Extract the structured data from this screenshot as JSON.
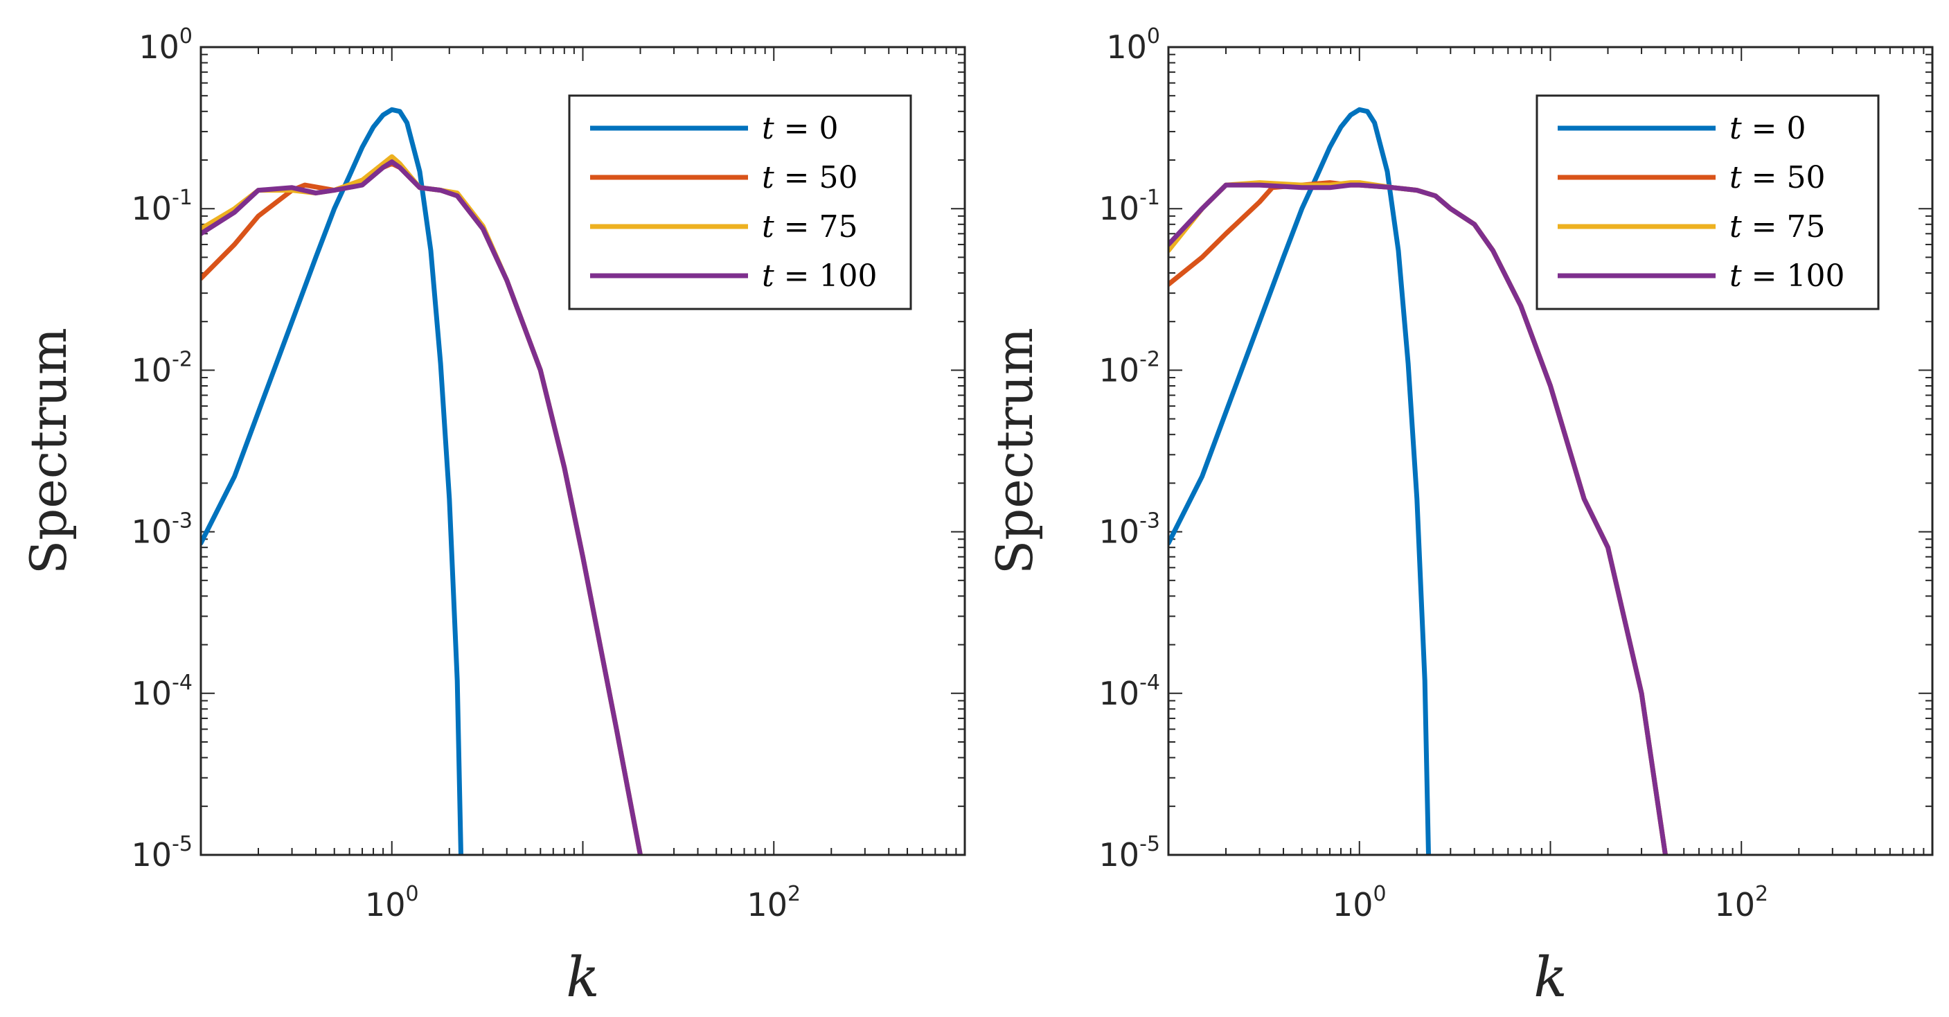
{
  "chart_data": [
    {
      "type": "line",
      "panel": "left",
      "xscale": "log",
      "yscale": "log",
      "xlim": [
        0.1,
        1000
      ],
      "ylim": [
        1e-05,
        1
      ],
      "xlabel": "k",
      "ylabel": "Spectrum",
      "xticks": [
        {
          "base": "10",
          "exp": "0",
          "value": 1
        },
        {
          "base": "10",
          "exp": "2",
          "value": 100
        }
      ],
      "yticks": [
        {
          "base": "10",
          "exp": "0",
          "value": 1
        },
        {
          "base": "10",
          "exp": "-1",
          "value": 0.1
        },
        {
          "base": "10",
          "exp": "-2",
          "value": 0.01
        },
        {
          "base": "10",
          "exp": "-3",
          "value": 0.001
        },
        {
          "base": "10",
          "exp": "-4",
          "value": 0.0001
        },
        {
          "base": "10",
          "exp": "-5",
          "value": 1e-05
        }
      ],
      "legend": {
        "position": "top-right"
      },
      "series": [
        {
          "name": "t = 0",
          "var": "t",
          "eq": " = 0",
          "color": "#0072BD",
          "points": [
            [
              0.1,
              0.00085
            ],
            [
              0.15,
              0.0022
            ],
            [
              0.2,
              0.0055
            ],
            [
              0.3,
              0.02
            ],
            [
              0.4,
              0.05
            ],
            [
              0.5,
              0.1
            ],
            [
              0.6,
              0.16
            ],
            [
              0.7,
              0.24
            ],
            [
              0.8,
              0.32
            ],
            [
              0.9,
              0.38
            ],
            [
              1.0,
              0.41
            ],
            [
              1.1,
              0.4
            ],
            [
              1.2,
              0.34
            ],
            [
              1.4,
              0.17
            ],
            [
              1.6,
              0.055
            ],
            [
              1.8,
              0.011
            ],
            [
              2.0,
              0.0016
            ],
            [
              2.2,
              0.00012
            ],
            [
              2.3,
              1e-05
            ]
          ]
        },
        {
          "name": "t = 50",
          "var": "t",
          "eq": " = 50",
          "color": "#D95319",
          "points": [
            [
              0.1,
              0.037
            ],
            [
              0.15,
              0.06
            ],
            [
              0.2,
              0.09
            ],
            [
              0.3,
              0.13
            ],
            [
              0.35,
              0.14
            ],
            [
              0.5,
              0.13
            ],
            [
              0.7,
              0.15
            ],
            [
              0.9,
              0.18
            ],
            [
              1.0,
              0.19
            ],
            [
              1.1,
              0.18
            ],
            [
              1.4,
              0.135
            ],
            [
              1.8,
              0.13
            ],
            [
              2.2,
              0.12
            ],
            [
              3,
              0.075
            ],
            [
              4,
              0.036
            ],
            [
              6,
              0.01
            ],
            [
              8,
              0.0025
            ],
            [
              10,
              0.0007
            ],
            [
              15,
              6e-05
            ],
            [
              20,
              1e-05
            ]
          ]
        },
        {
          "name": "t = 75",
          "var": "t",
          "eq": " = 75",
          "color": "#EDB120",
          "points": [
            [
              0.1,
              0.075
            ],
            [
              0.15,
              0.1
            ],
            [
              0.2,
              0.13
            ],
            [
              0.3,
              0.13
            ],
            [
              0.4,
              0.125
            ],
            [
              0.5,
              0.13
            ],
            [
              0.7,
              0.15
            ],
            [
              0.9,
              0.19
            ],
            [
              1.0,
              0.21
            ],
            [
              1.1,
              0.19
            ],
            [
              1.4,
              0.135
            ],
            [
              1.8,
              0.13
            ],
            [
              2.2,
              0.125
            ],
            [
              3,
              0.078
            ],
            [
              4,
              0.036
            ],
            [
              6,
              0.01
            ],
            [
              8,
              0.0025
            ],
            [
              10,
              0.0007
            ],
            [
              15,
              6e-05
            ],
            [
              20,
              1e-05
            ]
          ]
        },
        {
          "name": "t = 100",
          "var": "t",
          "eq": " = 100",
          "color": "#7E2F8E",
          "points": [
            [
              0.1,
              0.07
            ],
            [
              0.15,
              0.095
            ],
            [
              0.2,
              0.13
            ],
            [
              0.3,
              0.135
            ],
            [
              0.4,
              0.125
            ],
            [
              0.5,
              0.13
            ],
            [
              0.7,
              0.14
            ],
            [
              0.9,
              0.18
            ],
            [
              1.0,
              0.195
            ],
            [
              1.1,
              0.18
            ],
            [
              1.4,
              0.135
            ],
            [
              1.8,
              0.13
            ],
            [
              2.2,
              0.12
            ],
            [
              3,
              0.075
            ],
            [
              4,
              0.036
            ],
            [
              6,
              0.01
            ],
            [
              8,
              0.0025
            ],
            [
              10,
              0.0007
            ],
            [
              15,
              6e-05
            ],
            [
              20,
              1e-05
            ]
          ]
        }
      ]
    },
    {
      "type": "line",
      "panel": "right",
      "xscale": "log",
      "yscale": "log",
      "xlim": [
        0.1,
        1000
      ],
      "ylim": [
        1e-05,
        1
      ],
      "xlabel": "k",
      "ylabel": "Spectrum",
      "xticks": [
        {
          "base": "10",
          "exp": "0",
          "value": 1
        },
        {
          "base": "10",
          "exp": "2",
          "value": 100
        }
      ],
      "yticks": [
        {
          "base": "10",
          "exp": "0",
          "value": 1
        },
        {
          "base": "10",
          "exp": "-1",
          "value": 0.1
        },
        {
          "base": "10",
          "exp": "-2",
          "value": 0.01
        },
        {
          "base": "10",
          "exp": "-3",
          "value": 0.001
        },
        {
          "base": "10",
          "exp": "-4",
          "value": 0.0001
        },
        {
          "base": "10",
          "exp": "-5",
          "value": 1e-05
        }
      ],
      "legend": {
        "position": "top-right"
      },
      "series": [
        {
          "name": "t = 0",
          "var": "t",
          "eq": " = 0",
          "color": "#0072BD",
          "points": [
            [
              0.1,
              0.00085
            ],
            [
              0.15,
              0.0022
            ],
            [
              0.2,
              0.0055
            ],
            [
              0.3,
              0.02
            ],
            [
              0.4,
              0.05
            ],
            [
              0.5,
              0.1
            ],
            [
              0.6,
              0.16
            ],
            [
              0.7,
              0.24
            ],
            [
              0.8,
              0.32
            ],
            [
              0.9,
              0.38
            ],
            [
              1.0,
              0.41
            ],
            [
              1.1,
              0.4
            ],
            [
              1.2,
              0.34
            ],
            [
              1.4,
              0.17
            ],
            [
              1.6,
              0.055
            ],
            [
              1.8,
              0.011
            ],
            [
              2.0,
              0.0016
            ],
            [
              2.2,
              0.00012
            ],
            [
              2.3,
              1e-05
            ]
          ]
        },
        {
          "name": "t = 50",
          "var": "t",
          "eq": " = 50",
          "color": "#D95319",
          "points": [
            [
              0.1,
              0.034
            ],
            [
              0.15,
              0.05
            ],
            [
              0.2,
              0.07
            ],
            [
              0.3,
              0.11
            ],
            [
              0.35,
              0.135
            ],
            [
              0.5,
              0.14
            ],
            [
              0.7,
              0.145
            ],
            [
              0.9,
              0.14
            ],
            [
              1.0,
              0.14
            ],
            [
              1.5,
              0.135
            ],
            [
              2,
              0.13
            ],
            [
              2.5,
              0.12
            ],
            [
              3,
              0.1
            ],
            [
              4,
              0.08
            ],
            [
              5,
              0.055
            ],
            [
              7,
              0.025
            ],
            [
              10,
              0.008
            ],
            [
              15,
              0.0016
            ],
            [
              20,
              0.0008
            ],
            [
              30,
              0.0001
            ],
            [
              40,
              1e-05
            ]
          ]
        },
        {
          "name": "t = 75",
          "var": "t",
          "eq": " = 75",
          "color": "#EDB120",
          "points": [
            [
              0.1,
              0.055
            ],
            [
              0.15,
              0.1
            ],
            [
              0.2,
              0.14
            ],
            [
              0.3,
              0.145
            ],
            [
              0.5,
              0.14
            ],
            [
              0.7,
              0.14
            ],
            [
              0.9,
              0.145
            ],
            [
              1.0,
              0.145
            ],
            [
              1.5,
              0.135
            ],
            [
              2,
              0.13
            ],
            [
              2.5,
              0.12
            ],
            [
              3,
              0.1
            ],
            [
              4,
              0.08
            ],
            [
              5,
              0.055
            ],
            [
              7,
              0.025
            ],
            [
              10,
              0.008
            ],
            [
              15,
              0.0016
            ],
            [
              20,
              0.0008
            ],
            [
              30,
              0.0001
            ],
            [
              40,
              1e-05
            ]
          ]
        },
        {
          "name": "t = 100",
          "var": "t",
          "eq": " = 100",
          "color": "#7E2F8E",
          "points": [
            [
              0.1,
              0.06
            ],
            [
              0.15,
              0.1
            ],
            [
              0.2,
              0.14
            ],
            [
              0.3,
              0.14
            ],
            [
              0.5,
              0.135
            ],
            [
              0.7,
              0.135
            ],
            [
              0.9,
              0.14
            ],
            [
              1.0,
              0.14
            ],
            [
              1.5,
              0.135
            ],
            [
              2,
              0.13
            ],
            [
              2.5,
              0.12
            ],
            [
              3,
              0.1
            ],
            [
              4,
              0.08
            ],
            [
              5,
              0.055
            ],
            [
              7,
              0.025
            ],
            [
              10,
              0.008
            ],
            [
              15,
              0.0016
            ],
            [
              20,
              0.0008
            ],
            [
              30,
              0.0001
            ],
            [
              40,
              1e-05
            ]
          ]
        }
      ]
    }
  ]
}
